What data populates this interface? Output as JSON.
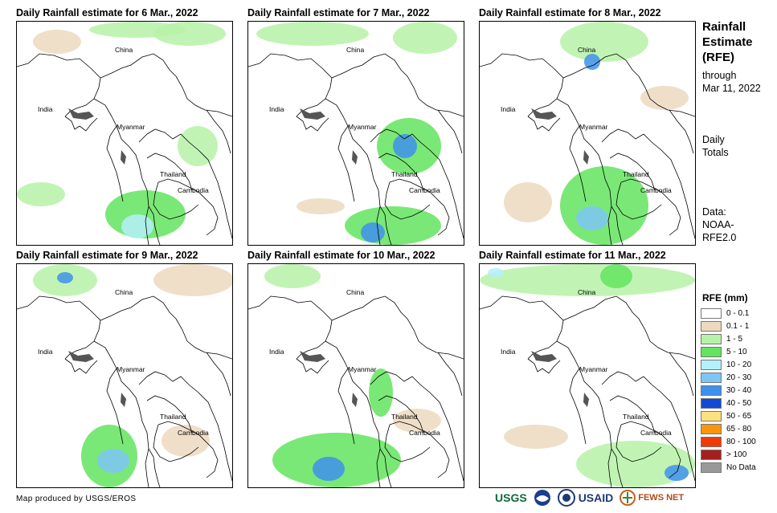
{
  "panels": [
    {
      "title": "Daily Rainfall estimate for 6 Mar., 2022"
    },
    {
      "title": "Daily Rainfall estimate for 7 Mar., 2022"
    },
    {
      "title": "Daily Rainfall estimate for 8 Mar., 2022"
    },
    {
      "title": "Daily Rainfall estimate for 9 Mar., 2022"
    },
    {
      "title": "Daily Rainfall estimate for 10 Mar., 2022"
    },
    {
      "title": "Daily Rainfall estimate for 11 Mar., 2022"
    }
  ],
  "map_labels": {
    "china": "China",
    "india": "India",
    "myanmar": "Myanmar",
    "thailand": "Thailand",
    "cambodia": "Cambodia"
  },
  "side": {
    "title_line1": "Rainfall",
    "title_line2": "Estimate",
    "title_line3": "(RFE)",
    "through": "through",
    "date": "Mar 11, 2022",
    "daily": "Daily",
    "totals": "Totals",
    "data_label": "Data:",
    "data_src1": "NOAA-",
    "data_src2": "RFE2.0"
  },
  "legend": {
    "title": "RFE (mm)",
    "items": [
      {
        "label": "0 - 0.1",
        "color": "#ffffff"
      },
      {
        "label": "0.1 - 1",
        "color": "#ecd9bf"
      },
      {
        "label": "1 - 5",
        "color": "#b6f2a7"
      },
      {
        "label": "5 - 10",
        "color": "#63e45e"
      },
      {
        "label": "10 - 20",
        "color": "#b4f0fa"
      },
      {
        "label": "20 - 30",
        "color": "#7ec5f7"
      },
      {
        "label": "30 - 40",
        "color": "#3f90ed"
      },
      {
        "label": "40 - 50",
        "color": "#1249d6"
      },
      {
        "label": "50 - 65",
        "color": "#fbe27b"
      },
      {
        "label": "65 - 80",
        "color": "#f9950c"
      },
      {
        "label": "80 - 100",
        "color": "#ef3a0a"
      },
      {
        "label": "> 100",
        "color": "#a61f1f"
      },
      {
        "label": "No Data",
        "color": "#999999"
      }
    ]
  },
  "footer": {
    "credit": "Map produced by USGS/EROS",
    "usgs": "USGS",
    "usaid": "USAID",
    "fewsnet": "FEWS NET"
  }
}
